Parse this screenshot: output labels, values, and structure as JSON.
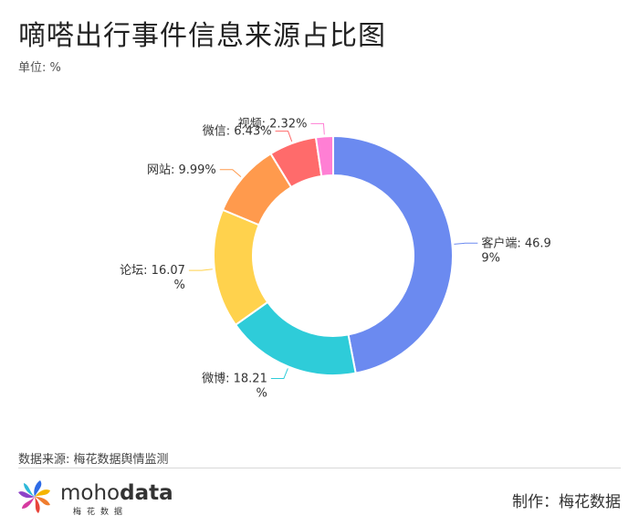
{
  "header": {
    "title": "嘀嗒出行事件信息来源占比图",
    "unit": "单位: %"
  },
  "footer": {
    "source": "数据来源: 梅花数据舆情监测",
    "brand_prefix": "moho",
    "brand_suffix": "data",
    "brand_cn": "梅花数据",
    "credit": "制作：梅花数据"
  },
  "chart_data": {
    "type": "pie",
    "variant": "donut",
    "unit": "%",
    "slices": [
      {
        "label": "客户端",
        "value": 46.99,
        "color": "#6B8AF0",
        "label_lines": [
          "客户端: 46.9",
          "9%"
        ]
      },
      {
        "label": "微博",
        "value": 18.21,
        "color": "#2ECCD9",
        "label_lines": [
          "微博: 18.21",
          "%"
        ]
      },
      {
        "label": "论坛",
        "value": 16.07,
        "color": "#FFD24D",
        "label_lines": [
          "论坛: 16.07",
          "%"
        ]
      },
      {
        "label": "网站",
        "value": 9.99,
        "color": "#FF9A4D",
        "label_lines": [
          "网站: 9.99%"
        ]
      },
      {
        "label": "微信",
        "value": 6.43,
        "color": "#FF6B6B",
        "label_lines": [
          "微信: 6.43%"
        ]
      },
      {
        "label": "视频",
        "value": 2.32,
        "color": "#FF7FD4",
        "label_lines": [
          "视频: 2.32%"
        ]
      }
    ]
  }
}
